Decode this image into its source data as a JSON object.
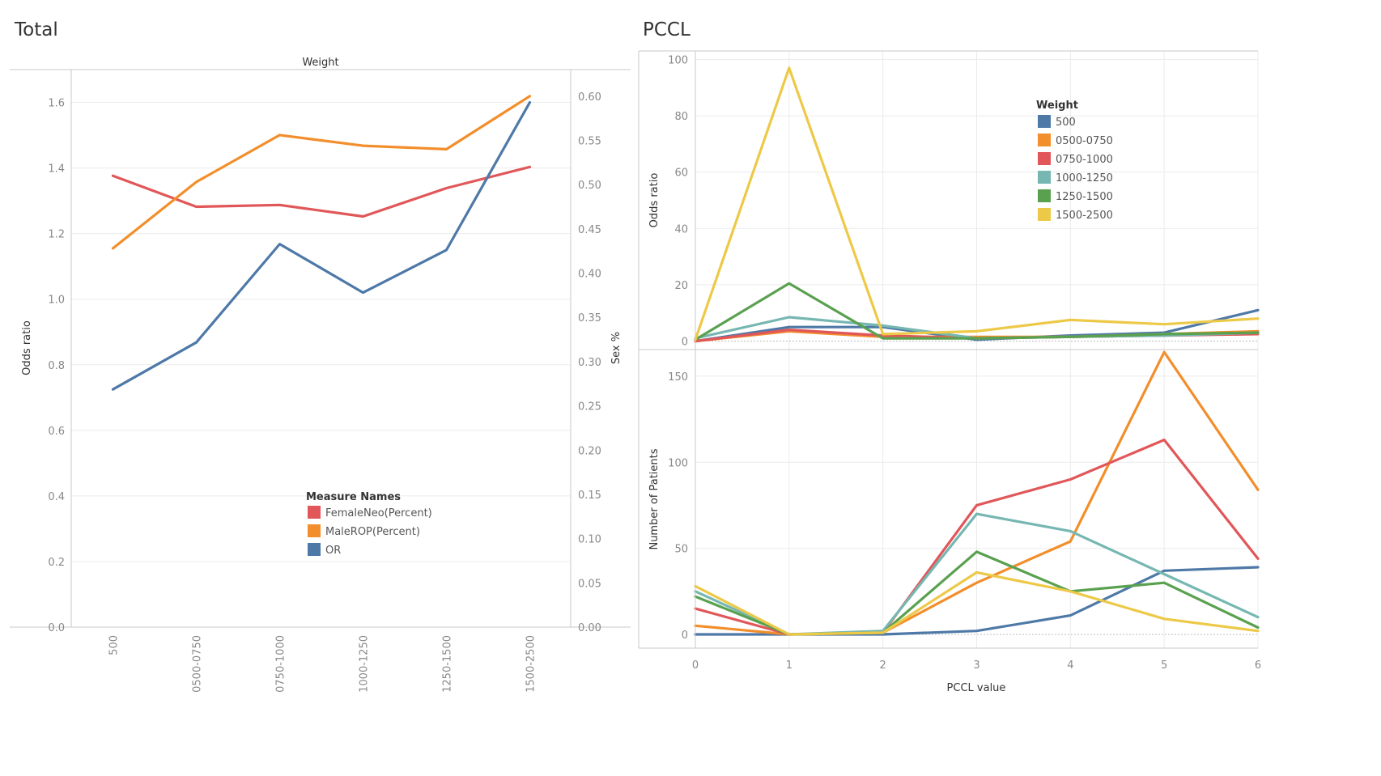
{
  "titles": {
    "left": "Total",
    "right": "PCCL"
  },
  "chart_data": [
    {
      "type": "line",
      "title": "Total",
      "xlabel": "Weight",
      "categories": [
        "500",
        "0500-0750",
        "0750-1000",
        "1000-1250",
        "1250-1500",
        "1500-2500"
      ],
      "y_left": {
        "label": "Odds ratio",
        "ylim": [
          0,
          1.7
        ],
        "ticks": [
          "0.0",
          "0.2",
          "0.4",
          "0.6",
          "0.8",
          "1.0",
          "1.2",
          "1.4",
          "1.6"
        ]
      },
      "y_right": {
        "label": "Sex %",
        "ylim": [
          0,
          0.63
        ],
        "ticks": [
          "0.00",
          "0.05",
          "0.10",
          "0.15",
          "0.20",
          "0.25",
          "0.30",
          "0.35",
          "0.40",
          "0.45",
          "0.50",
          "0.55",
          "0.60"
        ]
      },
      "legend": {
        "title": "Measure Names",
        "position": "bottom-center"
      },
      "series": [
        {
          "name": "FemaleNeo(Percent)",
          "axis": "right",
          "color": "#e15759",
          "values": [
            0.51,
            0.475,
            0.477,
            0.464,
            0.496,
            0.52
          ]
        },
        {
          "name": "MaleROP(Percent)",
          "axis": "right",
          "color": "#f28e2b",
          "values": [
            0.428,
            0.503,
            0.556,
            0.544,
            0.54,
            0.6
          ]
        },
        {
          "name": "OR",
          "axis": "left",
          "color": "#4e79a7",
          "values": [
            0.725,
            0.868,
            1.168,
            1.02,
            1.15,
            1.6
          ]
        }
      ],
      "grid": true
    },
    {
      "type": "line",
      "title": "PCCL",
      "xlabel": "PCCL value",
      "x": [
        0,
        1,
        2,
        3,
        4,
        5,
        6
      ],
      "xlim": [
        0,
        6
      ],
      "x_ticks": [
        "0",
        "1",
        "2",
        "3",
        "4",
        "5",
        "6"
      ],
      "legend": {
        "title": "Weight",
        "position": "top-center"
      },
      "panels": [
        {
          "ylabel": "Odds ratio",
          "ylim": [
            -3,
            103
          ],
          "y_ticks": [
            "0",
            "20",
            "40",
            "60",
            "80",
            "100"
          ],
          "series": [
            {
              "name": "500",
              "color": "#4e79a7",
              "values": [
                0,
                5,
                5,
                0.5,
                2,
                3,
                11
              ]
            },
            {
              "name": "0500-0750",
              "color": "#f28e2b",
              "values": [
                0,
                3.5,
                1.5,
                1.5,
                1.5,
                2.5,
                3.5
              ]
            },
            {
              "name": "0750-1000",
              "color": "#e15759",
              "values": [
                0,
                4,
                2,
                1,
                1.5,
                2,
                2.5
              ]
            },
            {
              "name": "1000-1250",
              "color": "#76b7b2",
              "values": [
                1,
                8.5,
                5.5,
                1,
                1.5,
                2,
                3
              ]
            },
            {
              "name": "1250-1500",
              "color": "#59a14f",
              "values": [
                0.5,
                20.5,
                1,
                1,
                1.5,
                2.5,
                3
              ]
            },
            {
              "name": "1500-2500",
              "color": "#edc948",
              "values": [
                0.5,
                97,
                2.5,
                3.5,
                7.5,
                6,
                8
              ]
            }
          ]
        },
        {
          "ylabel": "Number of Patients",
          "ylim": [
            -8,
            165
          ],
          "y_ticks": [
            "0",
            "50",
            "100",
            "150"
          ],
          "series": [
            {
              "name": "500",
              "color": "#4e79a7",
              "values": [
                0,
                0,
                0,
                2,
                11,
                37,
                39
              ]
            },
            {
              "name": "0500-0750",
              "color": "#f28e2b",
              "values": [
                5,
                0,
                1,
                30,
                54,
                164,
                84
              ]
            },
            {
              "name": "0750-1000",
              "color": "#e15759",
              "values": [
                15,
                0,
                1,
                75,
                90,
                113,
                44
              ]
            },
            {
              "name": "1000-1250",
              "color": "#76b7b2",
              "values": [
                25,
                0,
                2,
                70,
                60,
                35,
                10
              ]
            },
            {
              "name": "1250-1500",
              "color": "#59a14f",
              "values": [
                22,
                0,
                1,
                48,
                25,
                30,
                4
              ]
            },
            {
              "name": "1500-2500",
              "color": "#edc948",
              "values": [
                28,
                0,
                1,
                36,
                25,
                9,
                2
              ]
            }
          ]
        }
      ],
      "grid": true
    }
  ]
}
